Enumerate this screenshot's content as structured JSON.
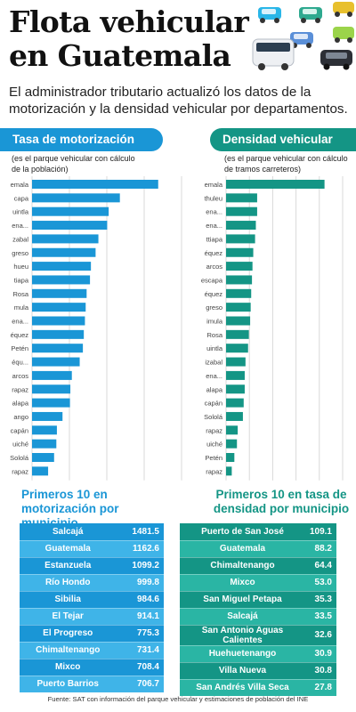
{
  "header": {
    "title": "Flota vehicular en Guatemala",
    "subtitle": "El administrador tributario actualizó los datos de la motorización y la densidad vehicular por departamentos."
  },
  "illustration": {
    "icon": "cars-illustration"
  },
  "left": {
    "heading": "Tasa de motorización",
    "note": "(es el parque vehicular con cálculo de la población)",
    "section_title": "Primeros 10 en motorización por municipio"
  },
  "right": {
    "heading": "Densidad vehicular",
    "note": "(es el parque vehicular con cálculo de tramos carreteros)",
    "section_title": "Primeros 10 en tasa de densidad por municipio"
  },
  "source": "Fuente: SAT con información del parque vehicular y estimaciones de población del INE",
  "colors": {
    "blue": "#1a96d6",
    "blue_light": "#3fb4e8",
    "teal": "#149585",
    "teal_light": "#2ab5a4"
  },
  "chart_data": [
    {
      "type": "bar",
      "orientation": "horizontal",
      "title": "Tasa de motorización",
      "categories": [
        "emala",
        "capa",
        "uintla",
        "ena...",
        "zabal",
        "greso",
        "hueu",
        "tiapa",
        "Rosa",
        "mula",
        "ena...",
        "équez",
        "Petén",
        "équ...",
        "arcos",
        "rapaz",
        "alapa",
        "ango",
        "capán",
        "uiché",
        "Sololá",
        "rapaz"
      ],
      "values": [
        675,
        470,
        410,
        402,
        355,
        340,
        315,
        310,
        292,
        287,
        283,
        277,
        272,
        255,
        213,
        205,
        203,
        163,
        133,
        130,
        118,
        86
      ],
      "xlim": [
        0,
        800
      ],
      "xticks": [
        "0",
        "200",
        "400",
        "600",
        "800"
      ],
      "grid": true,
      "color": "#1a96d6"
    },
    {
      "type": "bar",
      "orientation": "horizontal",
      "title": "Densidad vehicular",
      "categories": [
        "emala",
        "thuleu",
        "ena...",
        "ena...",
        "ttiapa",
        "équez",
        "arcos",
        "escapa",
        "équez",
        "greso",
        "imula",
        "Rosa",
        "uintla",
        "izabal",
        "ena...",
        "alapa",
        "capán",
        "Sololá",
        "rapaz",
        "uiché",
        "Petén",
        "rapaz"
      ],
      "values": [
        38,
        12,
        12,
        11.5,
        11.2,
        10.5,
        10.2,
        10,
        9.7,
        9.5,
        9.3,
        8.8,
        8.5,
        7.5,
        7.2,
        7.2,
        6.8,
        6.5,
        4.5,
        4.2,
        3.2,
        2.2
      ],
      "xlim": [
        0,
        45
      ],
      "xticks": [
        "0",
        "9",
        "18",
        "27",
        "36",
        "45"
      ],
      "grid": true,
      "color": "#149585"
    }
  ],
  "table_left": {
    "rows": [
      {
        "name": "Salcajá",
        "value": "1481.5"
      },
      {
        "name": "Guatemala",
        "value": "1162.6"
      },
      {
        "name": "Estanzuela",
        "value": "1099.2"
      },
      {
        "name": "Río Hondo",
        "value": "999.8"
      },
      {
        "name": "Sibilia",
        "value": "984.6"
      },
      {
        "name": "El Tejar",
        "value": "914.1"
      },
      {
        "name": "El Progreso",
        "value": "775.3"
      },
      {
        "name": "Chimaltenango",
        "value": "731.4"
      },
      {
        "name": "Mixco",
        "value": "708.4"
      },
      {
        "name": "Puerto Barrios",
        "value": "706.7"
      }
    ]
  },
  "table_right": {
    "rows": [
      {
        "name": "Puerto de San José",
        "value": "109.1"
      },
      {
        "name": "Guatemala",
        "value": "88.2"
      },
      {
        "name": "Chimaltenango",
        "value": "64.4"
      },
      {
        "name": "Mixco",
        "value": "53.0"
      },
      {
        "name": "San Miguel Petapa",
        "value": "35.3"
      },
      {
        "name": "Salcajá",
        "value": "33.5"
      },
      {
        "name": "San Antonio Aguas Calientes",
        "value": "32.6"
      },
      {
        "name": "Huehuetenango",
        "value": "30.9"
      },
      {
        "name": "Villa Nueva",
        "value": "30.8"
      },
      {
        "name": "San Andrés Villa Seca",
        "value": "27.8"
      }
    ]
  }
}
